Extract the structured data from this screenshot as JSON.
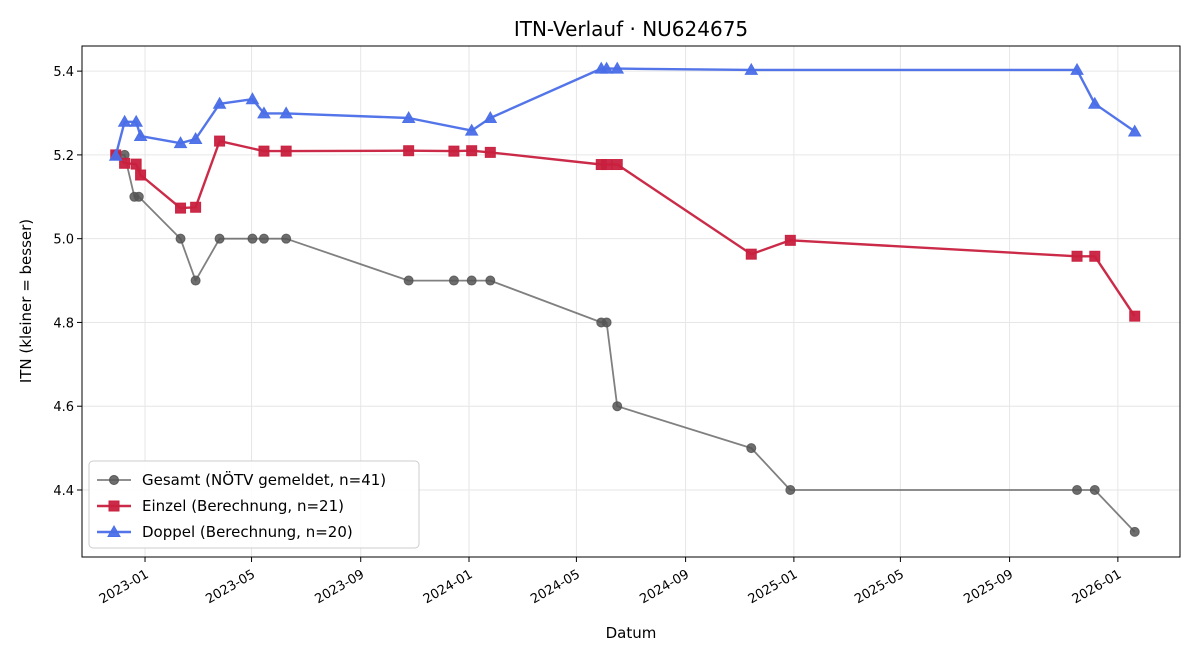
{
  "chart_data": {
    "type": "line",
    "title": "ITN-Verlauf · NU624675",
    "xlabel": "Datum",
    "ylabel": "ITN  (kleiner = besser)",
    "xlim": [
      "2022-10-22",
      "2026-03-12"
    ],
    "ylim": [
      4.24,
      5.46
    ],
    "x_ticks": [
      "2023-01",
      "2023-05",
      "2023-09",
      "2024-01",
      "2024-05",
      "2024-09",
      "2025-01",
      "2025-05",
      "2025-09",
      "2026-01"
    ],
    "y_ticks": [
      4.4,
      4.6,
      4.8,
      5.0,
      5.2,
      5.4
    ],
    "y_tick_labels": [
      "4.4",
      "4.6",
      "4.8",
      "5.0",
      "5.2",
      "5.4"
    ],
    "grid": true,
    "legend_position": "lower-left",
    "series": [
      {
        "name": "Gesamt (NÖTV gemeldet, n=41)",
        "color": "#555555",
        "marker": "circle",
        "points": [
          {
            "x": "2022-11-29",
            "y": 5.2
          },
          {
            "x": "2022-12-09",
            "y": 5.2
          },
          {
            "x": "2022-12-20",
            "y": 5.1
          },
          {
            "x": "2022-12-25",
            "y": 5.1
          },
          {
            "x": "2023-02-10",
            "y": 5.0
          },
          {
            "x": "2023-02-27",
            "y": 4.9
          },
          {
            "x": "2023-03-26",
            "y": 5.0
          },
          {
            "x": "2023-05-02",
            "y": 5.0
          },
          {
            "x": "2023-05-15",
            "y": 5.0
          },
          {
            "x": "2023-06-09",
            "y": 5.0
          },
          {
            "x": "2023-10-25",
            "y": 4.9
          },
          {
            "x": "2023-12-15",
            "y": 4.9
          },
          {
            "x": "2024-01-04",
            "y": 4.9
          },
          {
            "x": "2024-01-25",
            "y": 4.9
          },
          {
            "x": "2024-05-29",
            "y": 4.8
          },
          {
            "x": "2024-06-04",
            "y": 4.8
          },
          {
            "x": "2024-06-16",
            "y": 4.6
          },
          {
            "x": "2024-11-14",
            "y": 4.5
          },
          {
            "x": "2024-12-28",
            "y": 4.4
          },
          {
            "x": "2025-11-16",
            "y": 4.4
          },
          {
            "x": "2025-12-06",
            "y": 4.4
          },
          {
            "x": "2026-01-20",
            "y": 4.3
          }
        ]
      },
      {
        "name": "Einzel (Berechnung, n=21)",
        "color": "#c8203e",
        "marker": "square",
        "points": [
          {
            "x": "2022-11-29",
            "y": 5.2
          },
          {
            "x": "2022-12-09",
            "y": 5.18
          },
          {
            "x": "2022-12-22",
            "y": 5.178
          },
          {
            "x": "2022-12-27",
            "y": 5.152
          },
          {
            "x": "2023-02-10",
            "y": 5.073
          },
          {
            "x": "2023-02-27",
            "y": 5.075
          },
          {
            "x": "2023-03-26",
            "y": 5.233
          },
          {
            "x": "2023-05-15",
            "y": 5.209
          },
          {
            "x": "2023-06-09",
            "y": 5.209
          },
          {
            "x": "2023-10-25",
            "y": 5.21
          },
          {
            "x": "2023-12-15",
            "y": 5.209
          },
          {
            "x": "2024-01-04",
            "y": 5.21
          },
          {
            "x": "2024-01-25",
            "y": 5.206
          },
          {
            "x": "2024-05-29",
            "y": 5.177
          },
          {
            "x": "2024-06-04",
            "y": 5.177
          },
          {
            "x": "2024-06-16",
            "y": 5.177
          },
          {
            "x": "2024-11-14",
            "y": 4.963
          },
          {
            "x": "2024-12-28",
            "y": 4.996
          },
          {
            "x": "2025-11-16",
            "y": 4.958
          },
          {
            "x": "2025-12-06",
            "y": 4.958
          },
          {
            "x": "2026-01-20",
            "y": 4.815
          }
        ]
      },
      {
        "name": "Doppel (Berechnung, n=20)",
        "color": "#4a6ee8",
        "marker": "triangle",
        "points": [
          {
            "x": "2022-11-29",
            "y": 5.198
          },
          {
            "x": "2022-12-09",
            "y": 5.279
          },
          {
            "x": "2022-12-22",
            "y": 5.279
          },
          {
            "x": "2022-12-27",
            "y": 5.245
          },
          {
            "x": "2023-02-10",
            "y": 5.228
          },
          {
            "x": "2023-02-27",
            "y": 5.238
          },
          {
            "x": "2023-03-26",
            "y": 5.322
          },
          {
            "x": "2023-05-02",
            "y": 5.333
          },
          {
            "x": "2023-05-15",
            "y": 5.299
          },
          {
            "x": "2023-06-09",
            "y": 5.299
          },
          {
            "x": "2023-10-25",
            "y": 5.288
          },
          {
            "x": "2024-01-04",
            "y": 5.258
          },
          {
            "x": "2024-01-25",
            "y": 5.288
          },
          {
            "x": "2024-05-29",
            "y": 5.406
          },
          {
            "x": "2024-06-04",
            "y": 5.406
          },
          {
            "x": "2024-06-16",
            "y": 5.406
          },
          {
            "x": "2024-11-14",
            "y": 5.403
          },
          {
            "x": "2025-11-16",
            "y": 5.403
          },
          {
            "x": "2025-12-06",
            "y": 5.322
          },
          {
            "x": "2026-01-20",
            "y": 5.256
          }
        ]
      }
    ]
  }
}
